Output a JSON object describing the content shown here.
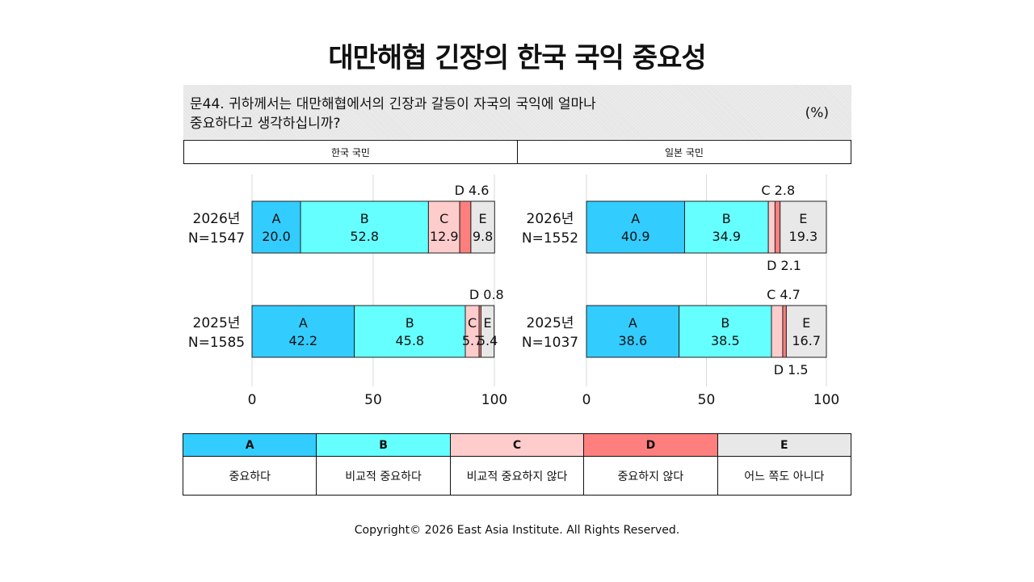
{
  "title": "대만해협 긴장의 한국 국익 중요성",
  "question": "문44. 귀하께서는 대만해협에서의 긴장과 갈등이 자국의 국익에 얼마나\n중요하다고 생각하십니까?",
  "unit": "(%)",
  "colors": {
    "A": "#33ccff",
    "B": "#66ffff",
    "C": "#ffcccc",
    "D": "#ff7f7f",
    "E": "#e8e8e8"
  },
  "legend": [
    {
      "key": "A",
      "label": "중요하다"
    },
    {
      "key": "B",
      "label": "비교적 중요하다"
    },
    {
      "key": "C",
      "label": "비교적 중요하지 않다"
    },
    {
      "key": "D",
      "label": "중요하지 않다"
    },
    {
      "key": "E",
      "label": "어느 쪽도 아니다"
    }
  ],
  "copyright": "Copyright© 2026 East Asia Institute. All Rights Reserved.",
  "chart_data": [
    {
      "type": "bar",
      "stacked": true,
      "orientation": "horizontal",
      "panel_title": "한국 국민",
      "categories": [
        "2026년\nN=1547",
        "2025년\nN=1585"
      ],
      "series": [
        {
          "name": "A",
          "values": [
            20.0,
            42.2
          ]
        },
        {
          "name": "B",
          "values": [
            52.8,
            45.8
          ]
        },
        {
          "name": "C",
          "values": [
            12.9,
            5.7
          ]
        },
        {
          "name": "D",
          "values": [
            4.6,
            0.8
          ]
        },
        {
          "name": "E",
          "values": [
            9.8,
            5.4
          ]
        }
      ],
      "xlim": [
        0,
        100
      ],
      "xticks": [
        0,
        50,
        100
      ],
      "grid": true
    },
    {
      "type": "bar",
      "stacked": true,
      "orientation": "horizontal",
      "panel_title": "일본 국민",
      "categories": [
        "2026년\nN=1552",
        "2025년\nN=1037"
      ],
      "series": [
        {
          "name": "A",
          "values": [
            40.9,
            38.6
          ]
        },
        {
          "name": "B",
          "values": [
            34.9,
            38.5
          ]
        },
        {
          "name": "C",
          "values": [
            2.8,
            4.7
          ]
        },
        {
          "name": "D",
          "values": [
            2.1,
            1.5
          ]
        },
        {
          "name": "E",
          "values": [
            19.3,
            16.7
          ]
        }
      ],
      "xlim": [
        0,
        100
      ],
      "xticks": [
        0,
        50,
        100
      ],
      "grid": true
    }
  ]
}
